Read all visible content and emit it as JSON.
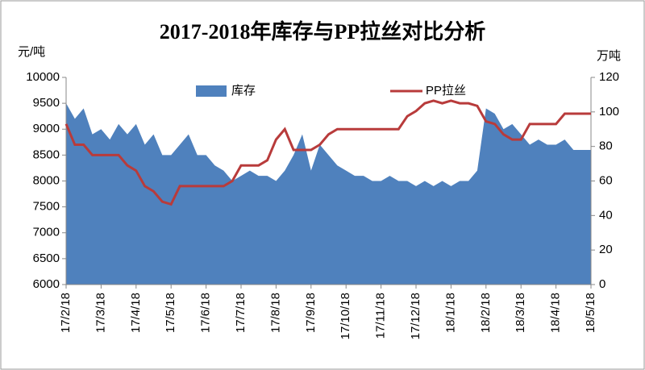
{
  "chart_data": {
    "type": "area_line",
    "title": "2017-2018年库存与PP拉丝对比分析",
    "y_label": "元/吨",
    "y2_label": "万吨",
    "legend": "top",
    "categories": [
      "17/2/18",
      null,
      null,
      null,
      "17/3/18",
      null,
      null,
      null,
      "17/4/18",
      null,
      null,
      null,
      "17/5/18",
      null,
      null,
      null,
      "17/6/18",
      null,
      null,
      null,
      "17/7/18",
      null,
      null,
      null,
      "17/8/18",
      null,
      null,
      null,
      "17/9/18",
      null,
      null,
      null,
      "17/10/18",
      null,
      null,
      null,
      "17/11/18",
      null,
      null,
      null,
      "17/12/18",
      null,
      null,
      null,
      "18/1/18",
      null,
      null,
      null,
      "18/2/18",
      null,
      null,
      null,
      "18/3/18",
      null,
      null,
      null,
      "18/4/18",
      null,
      null,
      null,
      "18/5/18"
    ],
    "series": [
      {
        "name": "库存",
        "type": "area",
        "axis": "y2",
        "color": "#4f81bd",
        "values": [
          105,
          96,
          102,
          87,
          90,
          84,
          93,
          87,
          93,
          81,
          87,
          75,
          75,
          81,
          87,
          75,
          75,
          69,
          66,
          60,
          63,
          66,
          63,
          63,
          60,
          66,
          75,
          87,
          66,
          81,
          75,
          69,
          66,
          63,
          63,
          60,
          60,
          63,
          60,
          60,
          57,
          60,
          57,
          60,
          57,
          60,
          60,
          66,
          102,
          99,
          90,
          93,
          87,
          81,
          84,
          81,
          81,
          84,
          78,
          78,
          78
        ]
      },
      {
        "name": "PP拉丝",
        "type": "line",
        "axis": "y",
        "color": "#b83b3b",
        "values": [
          9100,
          8700,
          8700,
          8500,
          8500,
          8500,
          8500,
          8300,
          8200,
          7900,
          7800,
          7600,
          7550,
          7900,
          7900,
          7900,
          7900,
          7900,
          7900,
          8000,
          8300,
          8300,
          8300,
          8400,
          8800,
          9000,
          8600,
          8600,
          8600,
          8700,
          8900,
          9000,
          9000,
          9000,
          9000,
          9000,
          9000,
          9000,
          9000,
          9250,
          9350,
          9500,
          9550,
          9500,
          9550,
          9500,
          9500,
          9450,
          9150,
          9100,
          8900,
          8800,
          8800,
          9100,
          9100,
          9100,
          9100,
          9300,
          9300,
          9300,
          9300
        ]
      }
    ],
    "ylim": [
      6000,
      10000
    ],
    "yticks": [
      6000,
      6500,
      7000,
      7500,
      8000,
      8500,
      9000,
      9500,
      10000
    ],
    "y2lim": [
      0,
      120
    ],
    "y2ticks": [
      0,
      20,
      40,
      60,
      80,
      100,
      120
    ]
  }
}
